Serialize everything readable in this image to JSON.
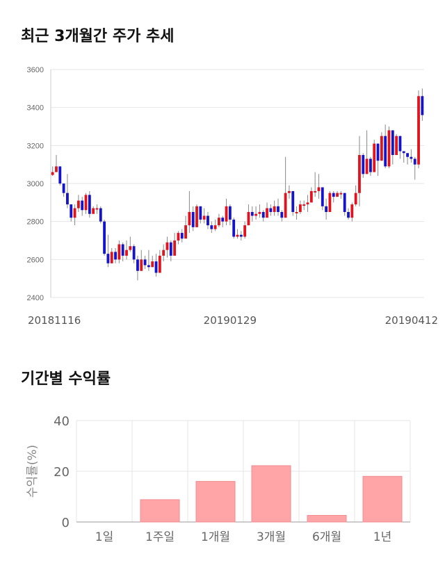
{
  "titles": {
    "candle": "최근 3개월간 주가 추세",
    "returns": "기간별 수익률"
  },
  "colors": {
    "up": "#e0141e",
    "down": "#1414c8",
    "wick": "#888888",
    "grid": "#e6e6e6",
    "bar": "#ffa5a8",
    "bar_stroke": "#f08c90"
  },
  "chart_data": [
    {
      "type": "candlestick",
      "title": "최근 3개월간 주가 추세",
      "ylim": [
        2400,
        3600
      ],
      "yticks": [
        "2400",
        "2600",
        "2800",
        "3000",
        "3200",
        "3400",
        "3600"
      ],
      "xtick_labels": [
        {
          "index": 0,
          "label": "20181116"
        },
        {
          "index": 48,
          "label": "20190129"
        },
        {
          "index": 96,
          "label": "20190412"
        }
      ],
      "closes": [
        3060,
        3090,
        3000,
        2950,
        2890,
        2820,
        2870,
        2910,
        2860,
        2940,
        2840,
        2870,
        2870,
        2800,
        2630,
        2580,
        2640,
        2600,
        2680,
        2620,
        2650,
        2670,
        2600,
        2540,
        2600,
        2570,
        2560,
        2590,
        2530,
        2620,
        2650,
        2690,
        2620,
        2700,
        2740,
        2710,
        2780,
        2850,
        2770,
        2880,
        2810,
        2830,
        2780,
        2760,
        2780,
        2820,
        2800,
        2880,
        2810,
        2720,
        2730,
        2720,
        2780,
        2850,
        2830,
        2840,
        2850,
        2820,
        2870,
        2850,
        2880,
        2850,
        2820,
        2950,
        2960,
        2850,
        2850,
        2890,
        2890,
        2900,
        2960,
        2960,
        2980,
        2880,
        2850,
        2950,
        2930,
        2950,
        2950,
        2850,
        2820,
        2890,
        2950,
        3150,
        3050,
        3130,
        3060,
        3210,
        3120,
        3250,
        3090,
        3280,
        3150,
        3250,
        3170,
        3160,
        3140,
        3130,
        3100,
        3460,
        3360
      ],
      "ranges": [
        [
          3040,
          3090
        ],
        [
          3060,
          3150
        ],
        [
          2990,
          3070
        ],
        [
          2930,
          3000
        ],
        [
          2870,
          3050
        ],
        [
          2800,
          2890
        ],
        [
          2780,
          2890
        ],
        [
          2850,
          2940
        ],
        [
          2830,
          2930
        ],
        [
          2840,
          2950
        ],
        [
          2820,
          2960
        ],
        [
          2840,
          2880
        ],
        [
          2840,
          2890
        ],
        [
          2790,
          2880
        ],
        [
          2620,
          2810
        ],
        [
          2560,
          2730
        ],
        [
          2580,
          2660
        ],
        [
          2580,
          2660
        ],
        [
          2580,
          2700
        ],
        [
          2590,
          2690
        ],
        [
          2600,
          2700
        ],
        [
          2640,
          2720
        ],
        [
          2580,
          2680
        ],
        [
          2490,
          2620
        ],
        [
          2540,
          2650
        ],
        [
          2550,
          2620
        ],
        [
          2540,
          2650
        ],
        [
          2560,
          2620
        ],
        [
          2510,
          2630
        ],
        [
          2560,
          2650
        ],
        [
          2590,
          2680
        ],
        [
          2610,
          2720
        ],
        [
          2590,
          2700
        ],
        [
          2620,
          2740
        ],
        [
          2680,
          2750
        ],
        [
          2690,
          2760
        ],
        [
          2710,
          2830
        ],
        [
          2740,
          2960
        ],
        [
          2750,
          2880
        ],
        [
          2780,
          2890
        ],
        [
          2790,
          2850
        ],
        [
          2790,
          2870
        ],
        [
          2760,
          2850
        ],
        [
          2740,
          2800
        ],
        [
          2750,
          2810
        ],
        [
          2770,
          2840
        ],
        [
          2770,
          2830
        ],
        [
          2780,
          2920
        ],
        [
          2780,
          2890
        ],
        [
          2710,
          2820
        ],
        [
          2710,
          2760
        ],
        [
          2700,
          2750
        ],
        [
          2710,
          2800
        ],
        [
          2780,
          2890
        ],
        [
          2800,
          2880
        ],
        [
          2810,
          2880
        ],
        [
          2820,
          2890
        ],
        [
          2800,
          2860
        ],
        [
          2820,
          2900
        ],
        [
          2830,
          2890
        ],
        [
          2830,
          2910
        ],
        [
          2830,
          2920
        ],
        [
          2800,
          2860
        ],
        [
          2820,
          3140
        ],
        [
          2920,
          2990
        ],
        [
          2830,
          2920
        ],
        [
          2810,
          2880
        ],
        [
          2840,
          2910
        ],
        [
          2860,
          2910
        ],
        [
          2850,
          2940
        ],
        [
          2900,
          2980
        ],
        [
          2930,
          3060
        ],
        [
          2920,
          3050
        ],
        [
          2860,
          2960
        ],
        [
          2810,
          2920
        ],
        [
          2850,
          2960
        ],
        [
          2900,
          2960
        ],
        [
          2930,
          2960
        ],
        [
          2920,
          2960
        ],
        [
          2830,
          2940
        ],
        [
          2810,
          2870
        ],
        [
          2800,
          2900
        ],
        [
          2880,
          2990
        ],
        [
          2880,
          3250
        ],
        [
          3030,
          3160
        ],
        [
          3100,
          3280
        ],
        [
          3040,
          3140
        ],
        [
          3060,
          3230
        ],
        [
          3040,
          3190
        ],
        [
          3120,
          3270
        ],
        [
          3080,
          3310
        ],
        [
          3080,
          3300
        ],
        [
          3100,
          3190
        ],
        [
          3150,
          3260
        ],
        [
          3130,
          3220
        ],
        [
          3110,
          3170
        ],
        [
          3100,
          3160
        ],
        [
          3110,
          3180
        ],
        [
          3020,
          3140
        ],
        [
          3080,
          3490
        ],
        [
          3330,
          3500
        ]
      ]
    },
    {
      "type": "bar",
      "title": "기간별 수익률",
      "ylabel": "수익률(%)",
      "ylim": [
        0,
        40
      ],
      "yticks": [
        "0",
        "20",
        "40"
      ],
      "categories": [
        "1일",
        "1주일",
        "1개월",
        "3개월",
        "6개월",
        "1년"
      ],
      "values": [
        0,
        8.8,
        16,
        22.2,
        2.6,
        18
      ]
    }
  ]
}
